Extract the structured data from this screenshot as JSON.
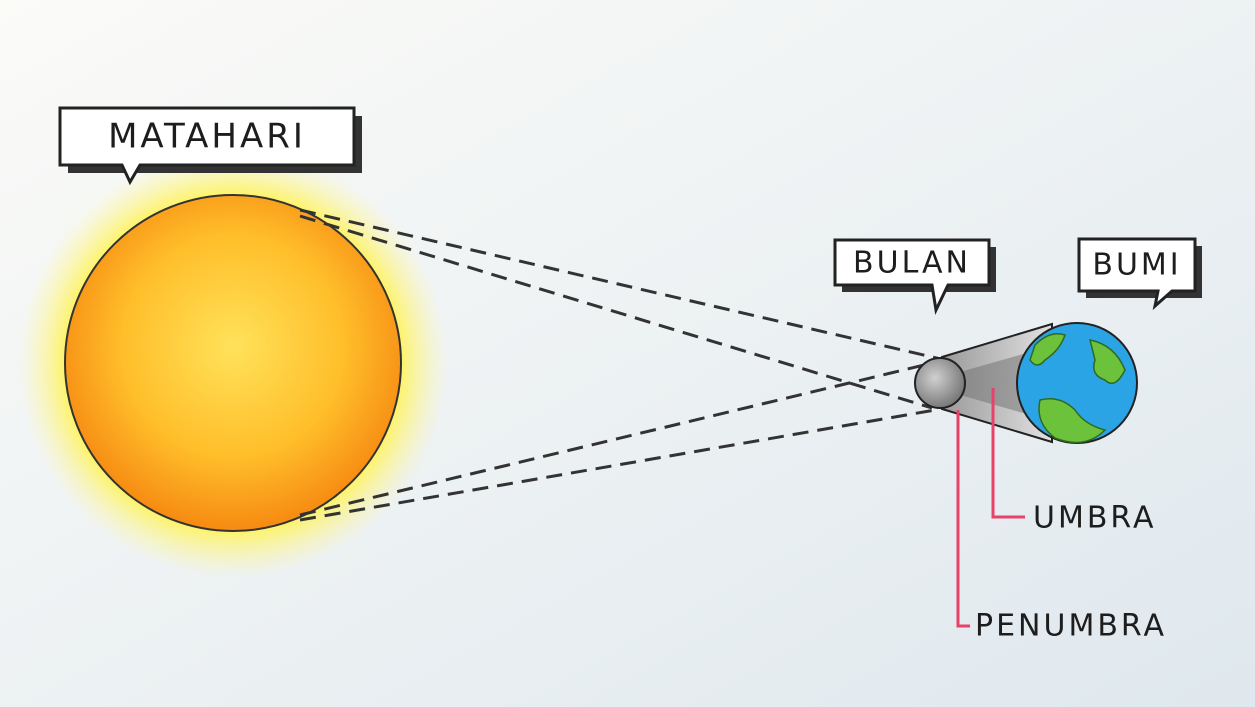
{
  "labels": {
    "sun": "MATAHARI",
    "moon": "BULAN",
    "earth": "BUMI",
    "umbra": "UMBRA",
    "penumbra": "PENUMBRA"
  }
}
